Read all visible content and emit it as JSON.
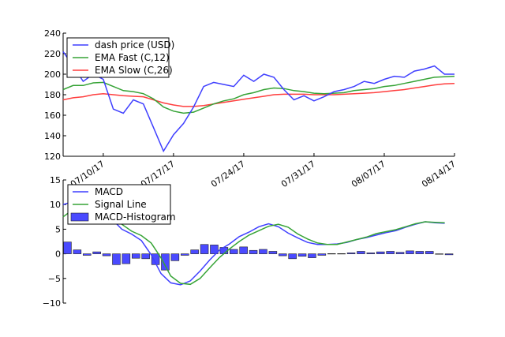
{
  "chart_data": [
    {
      "type": "line",
      "title": "",
      "xlabel": "",
      "ylabel": "",
      "ylim": [
        120,
        240
      ],
      "yticks": [
        "120",
        "140",
        "160",
        "180",
        "200",
        "220",
        "240"
      ],
      "x_start": "07/06/17",
      "x_end": "08/14/17",
      "xticks": [
        {
          "label": "07/10/17",
          "index": 4
        },
        {
          "label": "07/17/17",
          "index": 11
        },
        {
          "label": "07/24/17",
          "index": 18
        },
        {
          "label": "07/31/17",
          "index": 25
        },
        {
          "label": "08/07/17",
          "index": 32
        },
        {
          "label": "08/14/17",
          "index": 39
        }
      ],
      "legend_position": "top-left",
      "series": [
        {
          "name": "dash price (USD)",
          "color": "#3f3fff",
          "values": [
            222,
            208,
            193,
            200,
            195,
            166,
            162,
            175,
            171,
            148,
            125,
            141,
            152,
            168,
            188,
            192,
            190,
            188,
            199,
            193,
            200,
            197,
            185,
            175,
            179,
            174,
            178,
            183,
            185,
            188,
            193,
            191,
            195,
            198,
            197,
            203,
            205,
            208,
            200,
            200
          ]
        },
        {
          "name": "EMA Fast (C,12)",
          "color": "#36a336",
          "values": [
            185,
            189,
            189,
            191.5,
            192,
            188,
            184,
            183,
            181,
            176,
            168,
            164,
            162,
            163,
            167,
            171,
            174,
            176,
            180,
            182,
            185,
            186.5,
            186,
            184,
            183,
            181.5,
            181,
            181.5,
            182,
            184,
            185,
            186,
            188,
            189,
            191,
            193,
            195,
            197,
            197.5,
            198
          ]
        },
        {
          "name": "EMA Slow (C,26)",
          "color": "#ff3f3f",
          "values": [
            175,
            177,
            178,
            180,
            181,
            180,
            179,
            178.5,
            178,
            175,
            172,
            170,
            168.5,
            168.5,
            169.5,
            171,
            172.5,
            174,
            175.5,
            177,
            178.5,
            180,
            180.5,
            180.5,
            180.5,
            180,
            180,
            180,
            180.5,
            181,
            181.5,
            182,
            183,
            184,
            185,
            186.5,
            188,
            189.5,
            190.5,
            191
          ]
        }
      ]
    },
    {
      "type": "bar",
      "title": "",
      "xlabel": "",
      "ylabel": "",
      "ylim": [
        -10,
        15
      ],
      "yticks": [
        "−10",
        "−5",
        "0",
        "5",
        "10",
        "15"
      ],
      "legend_position": "top-left",
      "series": [
        {
          "name": "MACD",
          "kind": "line",
          "color": "#3f3fff",
          "values": [
            10.0,
            10.6,
            11,
            10.8,
            9.5,
            7,
            5,
            4,
            2.7,
            -0.2,
            -4,
            -5.9,
            -6.3,
            -5.5,
            -3.5,
            -1.2,
            0.8,
            2,
            3.5,
            4.4,
            5.5,
            6.1,
            5.5,
            4.2,
            3.2,
            2.3,
            1.9,
            1.9,
            2.0,
            2.3,
            2.9,
            3.3,
            3.8,
            4.3,
            4.7,
            5.4,
            6.0,
            6.5,
            6.3,
            6.2
          ]
        },
        {
          "name": "Signal Line",
          "kind": "line",
          "color": "#36a336",
          "values": [
            7.5,
            9,
            9.8,
            10,
            9.5,
            8,
            6,
            4.6,
            3.7,
            2.2,
            -0.8,
            -4.5,
            -6,
            -6.2,
            -5,
            -2.8,
            -0.7,
            1,
            2.5,
            3.8,
            4.7,
            5.6,
            6.0,
            5.4,
            4,
            3,
            2.2,
            1.9,
            1.9,
            2.4,
            2.9,
            3.4,
            4.1,
            4.5,
            4.9,
            5.5,
            6.1,
            6.5,
            6.4,
            6.3
          ]
        },
        {
          "name": "MACD-Histogram",
          "kind": "bar",
          "color": "#4a4aff",
          "values": [
            2.4,
            0.8,
            -0.3,
            0.4,
            -0.4,
            -2.2,
            -2.0,
            -0.9,
            -1.0,
            -2.2,
            -3.3,
            -1.4,
            -0.3,
            0.8,
            1.9,
            1.8,
            1.3,
            0.9,
            1.4,
            0.7,
            0.9,
            0.5,
            -0.4,
            -1.0,
            -0.5,
            -0.8,
            -0.3,
            0.05,
            0.05,
            0.2,
            0.5,
            0.2,
            0.4,
            0.5,
            0.3,
            0.6,
            0.5,
            0.5,
            -0.05,
            -0.2
          ]
        }
      ]
    }
  ]
}
